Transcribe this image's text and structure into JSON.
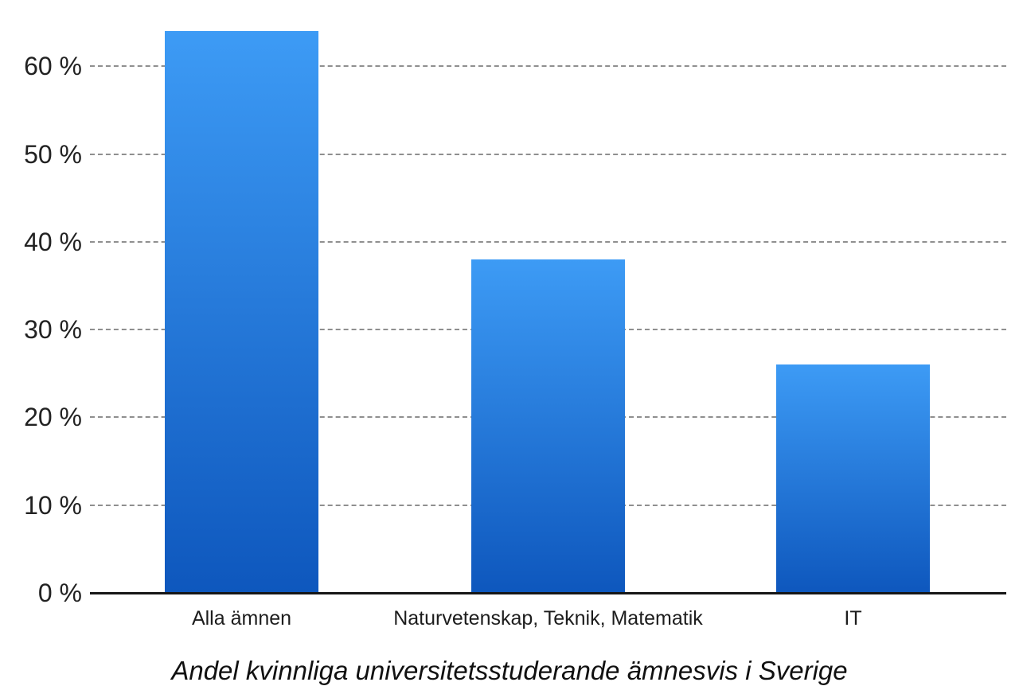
{
  "chart_data": {
    "type": "bar",
    "caption": "Andel kvinnliga universitetsstuderande ämnesvis i Sverige",
    "categories": [
      "Alla ämnen",
      "Naturvetenskap, Teknik, Matematik",
      "IT"
    ],
    "values": [
      64,
      38,
      26
    ],
    "unit": "%",
    "title": "",
    "xlabel": "",
    "ylabel": "",
    "ylim": [
      0,
      65
    ],
    "yticks": [
      0,
      10,
      20,
      30,
      40,
      50,
      60
    ],
    "ytick_suffix": " %",
    "grid": "horizontal-dashed",
    "legend": "none",
    "colors": {
      "bar_gradient_top": "#3D9BF5",
      "bar_gradient_bottom": "#0E57BD",
      "gridline": "#8F8F8F",
      "axis_line": "#161616",
      "label_text": "#1D1D1D"
    }
  }
}
